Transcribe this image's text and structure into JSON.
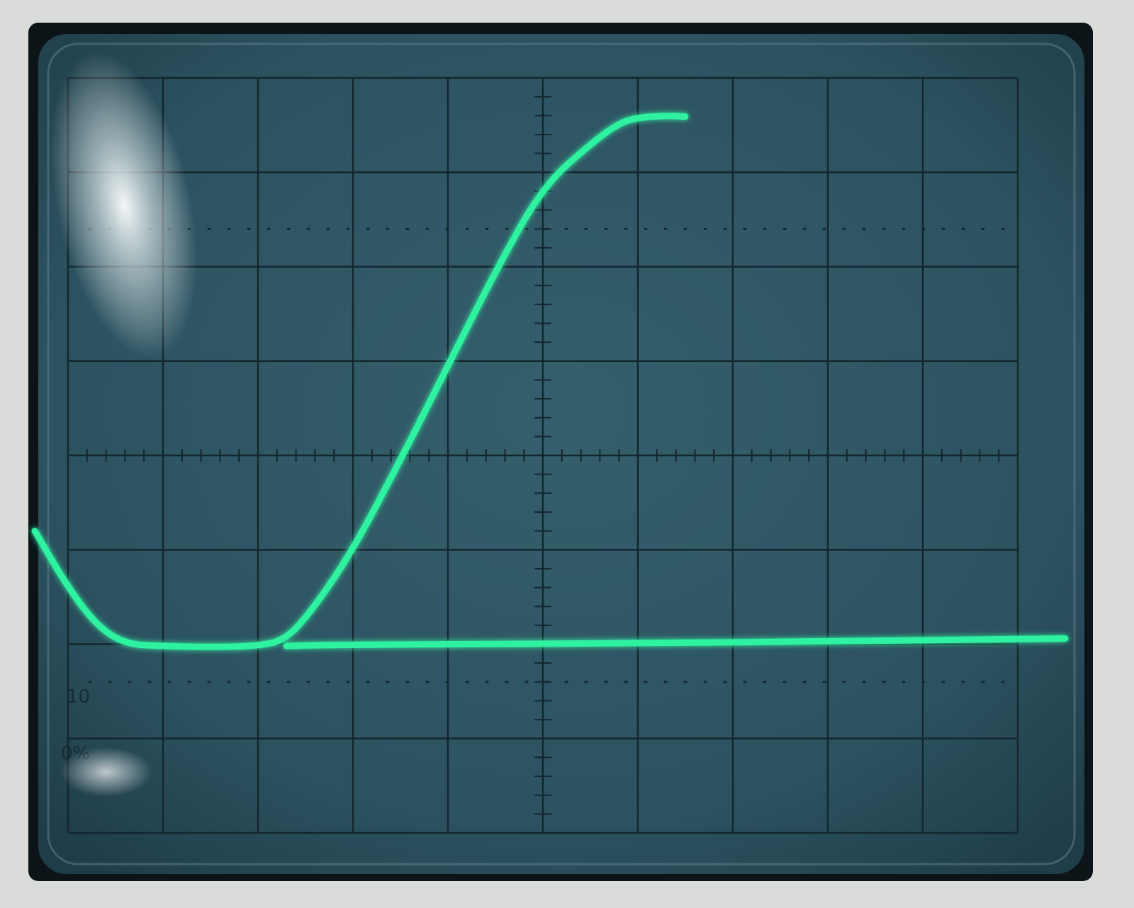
{
  "graticule_labels": {
    "level_10": "10",
    "level_0": "0%"
  },
  "colors": {
    "bezel": "#d9dcd8",
    "screen_border": "#0c1418",
    "screen": "#2f5663",
    "grid": "#13262e",
    "trace": "#2ef2a0"
  },
  "graticule": {
    "major_divisions_x": 10,
    "major_divisions_y": 8,
    "minor_ticks_per_division": 5
  },
  "traces": [
    {
      "name": "",
      "units": "divisions",
      "points": [
        [
          -0.35,
          3.2
        ],
        [
          0.0,
          2.6
        ],
        [
          0.3,
          2.2
        ],
        [
          0.6,
          2.0
        ],
        [
          1.0,
          1.98
        ],
        [
          1.5,
          1.97
        ],
        [
          2.0,
          1.98
        ],
        [
          2.3,
          2.05
        ],
        [
          2.6,
          2.4
        ],
        [
          3.0,
          3.0
        ],
        [
          3.5,
          3.95
        ],
        [
          4.0,
          4.95
        ],
        [
          4.5,
          5.95
        ],
        [
          5.0,
          6.85
        ],
        [
          5.5,
          7.3
        ],
        [
          5.8,
          7.52
        ],
        [
          6.0,
          7.58
        ],
        [
          6.3,
          7.6
        ],
        [
          6.5,
          7.59
        ]
      ]
    },
    {
      "name": "",
      "units": "divisions",
      "points": [
        [
          2.3,
          1.98
        ],
        [
          2.6,
          1.99
        ],
        [
          4.0,
          2.0
        ],
        [
          6.0,
          2.01
        ],
        [
          8.0,
          2.03
        ],
        [
          10.5,
          2.06
        ]
      ]
    }
  ]
}
